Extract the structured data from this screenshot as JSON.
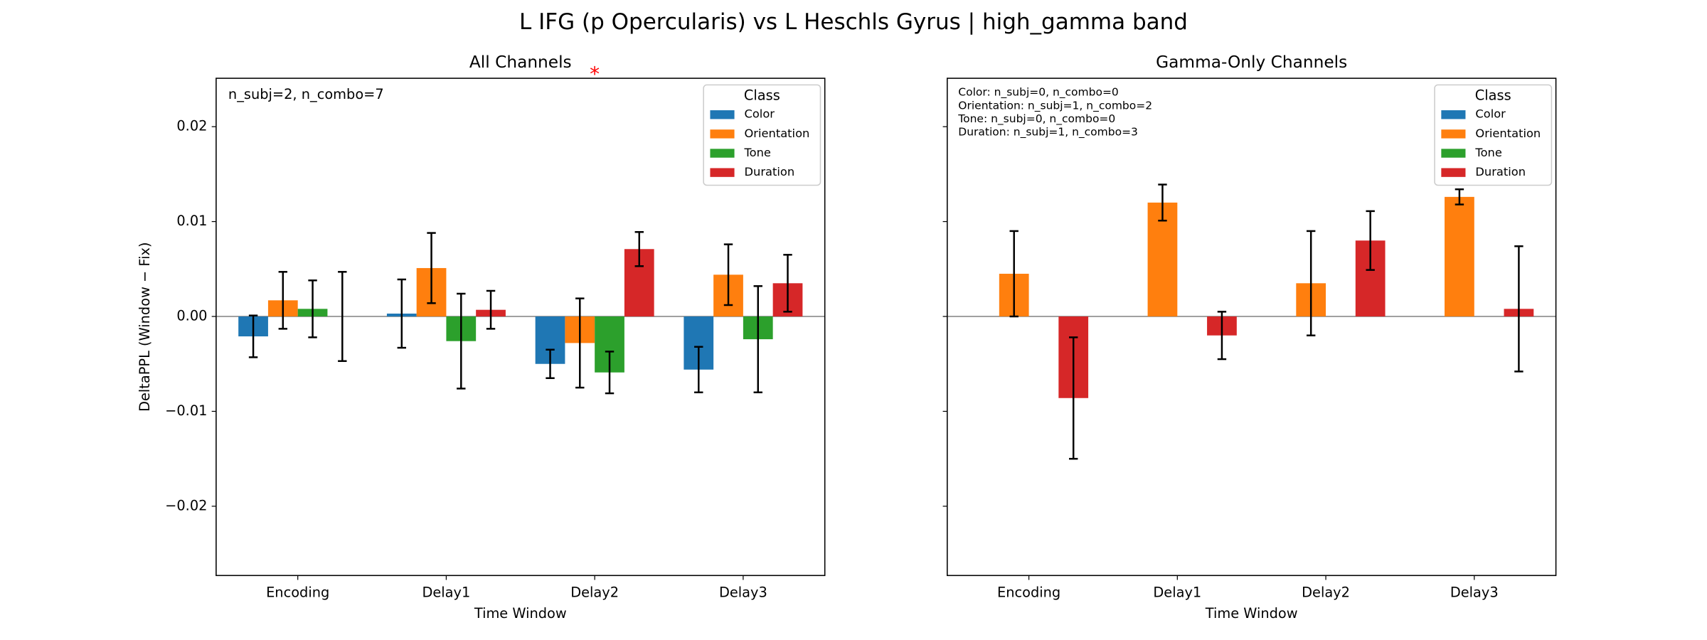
{
  "title": "L IFG (p Opercularis) vs L Heschls Gyrus  |  high_gamma band",
  "chart_data": [
    {
      "type": "bar",
      "title": "All Channels",
      "x_label": "Time Window",
      "y_label": "DeltaPPL (Window − Fix)",
      "categories": [
        "Encoding",
        "Delay1",
        "Delay2",
        "Delay3"
      ],
      "series": [
        {
          "name": "Color",
          "color": "#1f77b4",
          "values": [
            -0.0021,
            0.0003,
            -0.005,
            -0.0056
          ],
          "errors": [
            0.0022,
            0.0036,
            0.0015,
            0.0024
          ]
        },
        {
          "name": "Orientation",
          "color": "#ff7f0e",
          "values": [
            0.0017,
            0.0051,
            -0.0028,
            0.0044
          ],
          "errors": [
            0.003,
            0.0037,
            0.0047,
            0.0032
          ]
        },
        {
          "name": "Tone",
          "color": "#2ca02c",
          "values": [
            0.0008,
            -0.0026,
            -0.0059,
            -0.0024
          ],
          "errors": [
            0.003,
            0.005,
            0.0022,
            0.0056
          ]
        },
        {
          "name": "Duration",
          "color": "#d62728",
          "values": [
            0.0,
            0.0007,
            0.0071,
            0.0035
          ],
          "errors": [
            0.0047,
            0.002,
            0.0018,
            0.003
          ]
        }
      ],
      "ylim": [
        -0.0273,
        0.0251
      ],
      "yticks": [
        {
          "value": 0.02,
          "label": "0.02"
        },
        {
          "value": 0.01,
          "label": "0.01"
        },
        {
          "value": 0,
          "label": "0.00"
        },
        {
          "value": -0.01,
          "label": "−0.01"
        },
        {
          "value": -0.02,
          "label": "−0.02"
        }
      ],
      "show_ytick_labels": true,
      "legend_title": "Class",
      "legend": "upper right",
      "annotation": [
        "n_subj=2, n_combo=7"
      ],
      "significance": {
        "category": "Delay2",
        "label": "*",
        "color": "#ff0000"
      }
    },
    {
      "type": "bar",
      "title": "Gamma-Only Channels",
      "x_label": "Time Window",
      "categories": [
        "Encoding",
        "Delay1",
        "Delay2",
        "Delay3"
      ],
      "series": [
        {
          "name": "Color",
          "color": "#1f77b4",
          "values": [
            null,
            null,
            null,
            null
          ],
          "errors": [
            null,
            null,
            null,
            null
          ]
        },
        {
          "name": "Orientation",
          "color": "#ff7f0e",
          "values": [
            0.0045,
            0.012,
            0.0035,
            0.0126
          ],
          "errors": [
            0.0045,
            0.0019,
            0.0055,
            0.0008
          ]
        },
        {
          "name": "Tone",
          "color": "#2ca02c",
          "values": [
            null,
            null,
            null,
            null
          ],
          "errors": [
            null,
            null,
            null,
            null
          ]
        },
        {
          "name": "Duration",
          "color": "#d62728",
          "values": [
            -0.0086,
            -0.002,
            0.008,
            0.0008
          ],
          "errors": [
            0.0064,
            0.0025,
            0.0031,
            0.0066
          ]
        }
      ],
      "ylim": [
        -0.0273,
        0.0251
      ],
      "yticks": [
        0.02,
        0.01,
        0,
        -0.01,
        -0.02
      ],
      "show_ytick_labels": false,
      "legend_title": "Class",
      "legend": "upper right",
      "annotation": [
        "Color: n_subj=0, n_combo=0",
        "Orientation: n_subj=1, n_combo=2",
        "Tone: n_subj=0, n_combo=0",
        "Duration: n_subj=1, n_combo=3"
      ]
    }
  ]
}
